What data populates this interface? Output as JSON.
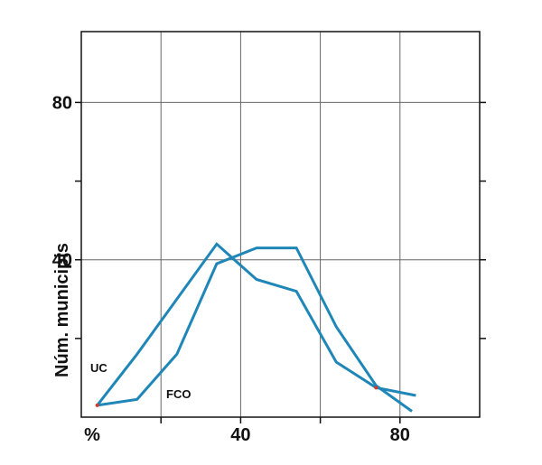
{
  "chart_data": {
    "type": "line",
    "title": "",
    "xlabel": "%",
    "ylabel": "Núm. municipis",
    "xlim": [
      0,
      100
    ],
    "ylim": [
      0,
      98
    ],
    "grid": true,
    "x_ticks": [
      {
        "value": 40,
        "label": "40"
      },
      {
        "value": 80,
        "label": "80"
      }
    ],
    "x_grid": [
      20,
      40,
      60,
      80
    ],
    "y_ticks": [
      {
        "value": 40,
        "label": "40"
      },
      {
        "value": 80,
        "label": "80"
      }
    ],
    "y_grid": [
      40,
      80
    ],
    "y_minor_ticks": [
      20,
      60
    ],
    "series": [
      {
        "name": "UC",
        "color": "#1f86b8",
        "points": [
          {
            "x": 4,
            "y": 3
          },
          {
            "x": 14,
            "y": 16
          },
          {
            "x": 24,
            "y": 30
          },
          {
            "x": 34,
            "y": 44
          },
          {
            "x": 44,
            "y": 35
          },
          {
            "x": 54,
            "y": 32
          },
          {
            "x": 64,
            "y": 14
          },
          {
            "x": 74,
            "y": 7.5
          },
          {
            "x": 84,
            "y": 5.5
          }
        ]
      },
      {
        "name": "FCO",
        "color": "#1f86b8",
        "points": [
          {
            "x": 4,
            "y": 3
          },
          {
            "x": 14,
            "y": 4.5
          },
          {
            "x": 24,
            "y": 16
          },
          {
            "x": 34,
            "y": 39
          },
          {
            "x": 44,
            "y": 43
          },
          {
            "x": 54,
            "y": 43
          },
          {
            "x": 64,
            "y": 23
          },
          {
            "x": 74,
            "y": 8
          },
          {
            "x": 83,
            "y": 1.5
          }
        ]
      }
    ],
    "accent_points": [
      {
        "x": 4,
        "y": 3
      },
      {
        "x": 74,
        "y": 7.5
      }
    ],
    "accent_color": "#d23a2a"
  }
}
